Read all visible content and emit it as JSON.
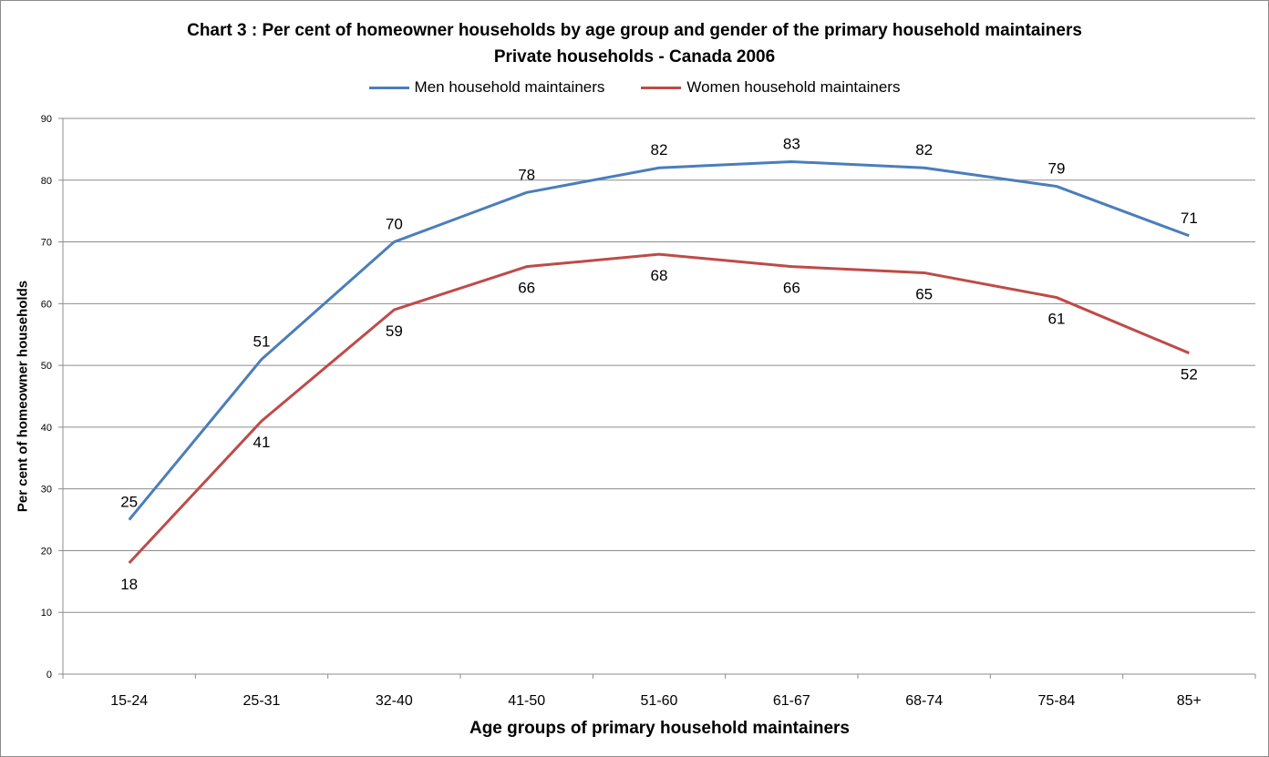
{
  "chart_data": {
    "type": "line",
    "title": "Chart 3 : Per cent of homeowner households by age group and gender of the primary household maintainers",
    "subtitle": "Private households - Canada 2006",
    "xlabel": "Age groups of primary household maintainers",
    "ylabel": "Per cent of homeowner households",
    "categories": [
      "15-24",
      "25-31",
      "32-40",
      "41-50",
      "51-60",
      "61-67",
      "68-74",
      "75-84",
      "85+"
    ],
    "ylim": [
      0,
      90
    ],
    "yticks": [
      0,
      10,
      20,
      30,
      40,
      50,
      60,
      70,
      80,
      90
    ],
    "grid": true,
    "legend_position": "top-center",
    "series": [
      {
        "name": "Men household maintainers",
        "color": "#4a7ebb",
        "label_position": "above",
        "values": [
          25,
          51,
          70,
          78,
          82,
          83,
          82,
          79,
          71
        ]
      },
      {
        "name": "Women household maintainers",
        "color": "#be4b48",
        "label_position": "below",
        "values": [
          18,
          41,
          59,
          66,
          68,
          66,
          65,
          61,
          52
        ]
      }
    ]
  }
}
